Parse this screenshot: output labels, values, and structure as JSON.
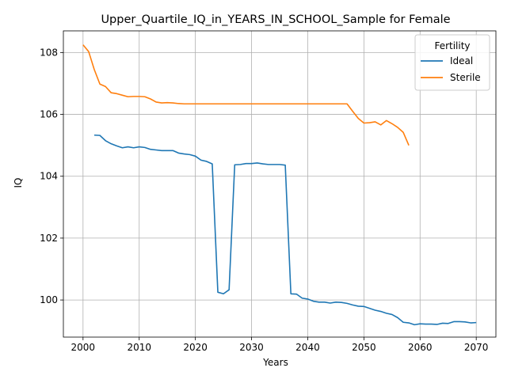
{
  "chart_data": {
    "type": "line",
    "title": "Upper_Quartile_IQ_in_YEARS_IN_SCHOOL_Sample for Female",
    "xlabel": "Years",
    "ylabel": "IQ",
    "xlim": [
      1996.5,
      2073.5
    ],
    "ylim": [
      98.8,
      108.7
    ],
    "grid": true,
    "xticks": [
      2000,
      2010,
      2020,
      2030,
      2040,
      2050,
      2060,
      2070
    ],
    "yticks": [
      100,
      102,
      104,
      106,
      108
    ],
    "legend": {
      "title": "Fertility",
      "placement": "top-right"
    },
    "series": [
      {
        "name": "Ideal",
        "color": "#1f77b4",
        "x": [
          2002,
          2003,
          2004,
          2005,
          2006,
          2007,
          2008,
          2009,
          2010,
          2011,
          2012,
          2013,
          2014,
          2015,
          2016,
          2017,
          2018,
          2019,
          2020,
          2021,
          2022,
          2023,
          2024,
          2025,
          2026,
          2027,
          2028,
          2029,
          2030,
          2031,
          2032,
          2033,
          2034,
          2035,
          2036,
          2037,
          2038,
          2039,
          2040,
          2041,
          2042,
          2043,
          2044,
          2045,
          2046,
          2047,
          2048,
          2049,
          2050,
          2051,
          2052,
          2053,
          2054,
          2055,
          2056,
          2057,
          2058,
          2059,
          2060,
          2061,
          2062,
          2063,
          2064,
          2065,
          2066,
          2067,
          2068,
          2069,
          2070
        ],
        "y": [
          105.33,
          105.32,
          105.15,
          105.05,
          104.98,
          104.92,
          104.95,
          104.92,
          104.95,
          104.93,
          104.87,
          104.85,
          104.83,
          104.83,
          104.83,
          104.75,
          104.72,
          104.7,
          104.65,
          104.52,
          104.48,
          104.4,
          100.25,
          100.2,
          100.33,
          104.37,
          104.38,
          104.41,
          104.41,
          104.43,
          104.4,
          104.38,
          104.38,
          104.38,
          104.36,
          100.2,
          100.19,
          100.06,
          100.03,
          99.96,
          99.93,
          99.93,
          99.9,
          99.93,
          99.92,
          99.89,
          99.84,
          99.8,
          99.79,
          99.73,
          99.67,
          99.63,
          99.57,
          99.53,
          99.43,
          99.28,
          99.26,
          99.2,
          99.23,
          99.22,
          99.22,
          99.21,
          99.25,
          99.24,
          99.3,
          99.3,
          99.29,
          99.26,
          99.27
        ]
      },
      {
        "name": "Sterile",
        "color": "#ff7f0e",
        "x": [
          2000,
          2001,
          2002,
          2003,
          2004,
          2005,
          2006,
          2007,
          2008,
          2009,
          2010,
          2011,
          2012,
          2013,
          2014,
          2015,
          2016,
          2017,
          2018,
          2019,
          2020,
          2021,
          2022,
          2023,
          2024,
          2025,
          2026,
          2027,
          2028,
          2029,
          2030,
          2031,
          2032,
          2033,
          2034,
          2035,
          2036,
          2037,
          2038,
          2039,
          2040,
          2041,
          2042,
          2043,
          2044,
          2045,
          2046,
          2047,
          2048,
          2049,
          2050,
          2051,
          2052,
          2053,
          2054,
          2055,
          2056,
          2057,
          2058
        ],
        "y": [
          108.25,
          108.03,
          107.45,
          106.98,
          106.9,
          106.7,
          106.67,
          106.62,
          106.57,
          106.58,
          106.58,
          106.57,
          106.5,
          106.4,
          106.37,
          106.38,
          106.37,
          106.35,
          106.34,
          106.34,
          106.34,
          106.34,
          106.34,
          106.34,
          106.34,
          106.34,
          106.34,
          106.34,
          106.34,
          106.34,
          106.34,
          106.34,
          106.34,
          106.34,
          106.34,
          106.34,
          106.34,
          106.34,
          106.34,
          106.34,
          106.34,
          106.34,
          106.34,
          106.34,
          106.34,
          106.34,
          106.34,
          106.34,
          106.1,
          105.87,
          105.72,
          105.73,
          105.76,
          105.66,
          105.8,
          105.7,
          105.58,
          105.42,
          105.0
        ]
      }
    ]
  }
}
